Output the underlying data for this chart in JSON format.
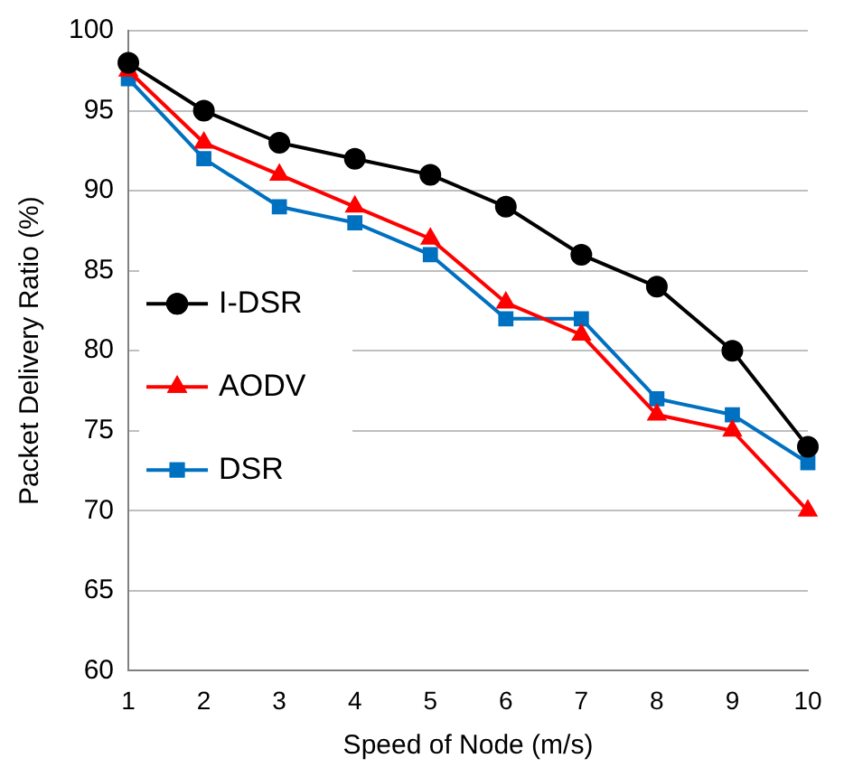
{
  "chart_data": {
    "type": "line",
    "xlabel": "Speed of Node (m/s)",
    "ylabel": "Packet Delivery Ratio (%)",
    "x": [
      1,
      2,
      3,
      4,
      5,
      6,
      7,
      8,
      9,
      10
    ],
    "xlim": [
      1,
      10
    ],
    "xticks": [
      1,
      2,
      3,
      4,
      5,
      6,
      7,
      8,
      9,
      10
    ],
    "ylim": [
      60,
      100
    ],
    "yticks": [
      60,
      65,
      70,
      75,
      80,
      85,
      90,
      95,
      100
    ],
    "grid": "y",
    "legend": "left",
    "series": [
      {
        "name": "I-DSR",
        "color": "#000000",
        "marker": "circle",
        "values": [
          98,
          95,
          93,
          92,
          91,
          89,
          86,
          84,
          80,
          74
        ]
      },
      {
        "name": "AODV",
        "color": "#ff0000",
        "marker": "triangle",
        "values": [
          97.5,
          93,
          91,
          89,
          87,
          83,
          81,
          76,
          75,
          70
        ]
      },
      {
        "name": "DSR",
        "color": "#0070c0",
        "marker": "square",
        "values": [
          97,
          92,
          89,
          88,
          86,
          82,
          82,
          77,
          76,
          73
        ]
      }
    ]
  }
}
